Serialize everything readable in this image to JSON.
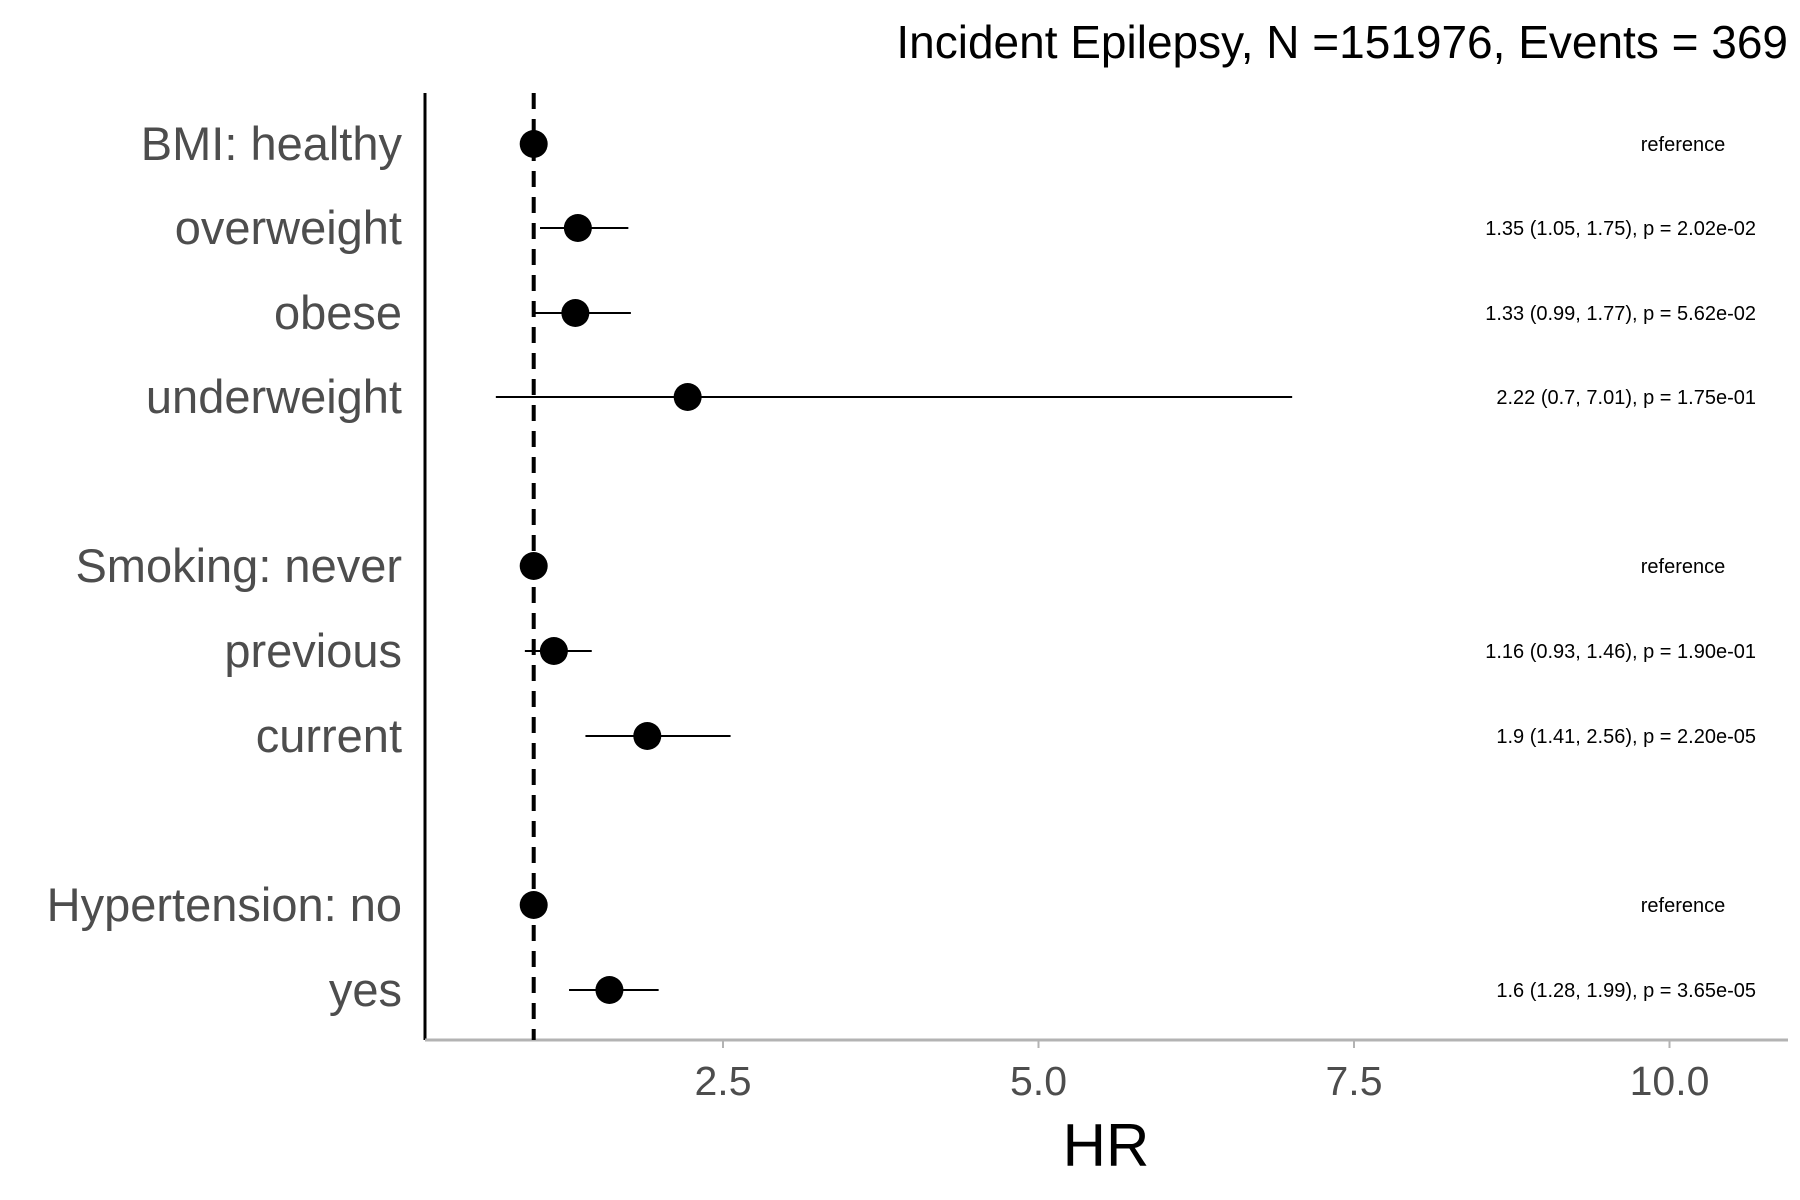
{
  "chart_data": {
    "type": "forest",
    "title": "Incident Epilepsy, N =151976, Events = 369",
    "xlabel": "HR",
    "xlim": [
      0.2,
      10.8
    ],
    "x_ticks": [
      2.5,
      5.0,
      7.5,
      10.0
    ],
    "x_tick_labels": [
      "2.5",
      "5.0",
      "7.5",
      "10.0"
    ],
    "reference_line": 1,
    "grid": false,
    "rows": [
      {
        "label": "BMI: healthy",
        "hr": 1.0,
        "lower": null,
        "upper": null,
        "annotation": "reference"
      },
      {
        "label": "overweight",
        "hr": 1.35,
        "lower": 1.05,
        "upper": 1.75,
        "annotation": "1.35 (1.05, 1.75), p = 2.02e-02"
      },
      {
        "label": "obese",
        "hr": 1.33,
        "lower": 0.99,
        "upper": 1.77,
        "annotation": "1.33 (0.99, 1.77), p = 5.62e-02"
      },
      {
        "label": "underweight",
        "hr": 2.22,
        "lower": 0.7,
        "upper": 7.01,
        "annotation": "2.22 (0.7, 7.01), p = 1.75e-01"
      },
      {
        "label": "Smoking: never",
        "hr": 1.0,
        "lower": null,
        "upper": null,
        "annotation": "reference"
      },
      {
        "label": "previous",
        "hr": 1.16,
        "lower": 0.93,
        "upper": 1.46,
        "annotation": "1.16 (0.93, 1.46), p = 1.90e-01"
      },
      {
        "label": "current",
        "hr": 1.9,
        "lower": 1.41,
        "upper": 2.56,
        "annotation": "1.9 (1.41, 2.56), p = 2.20e-05"
      },
      {
        "label": "Hypertension: no",
        "hr": 1.0,
        "lower": null,
        "upper": null,
        "annotation": "reference"
      },
      {
        "label": "yes",
        "hr": 1.6,
        "lower": 1.28,
        "upper": 1.99,
        "annotation": "1.6 (1.28, 1.99), p = 3.65e-05"
      }
    ]
  }
}
